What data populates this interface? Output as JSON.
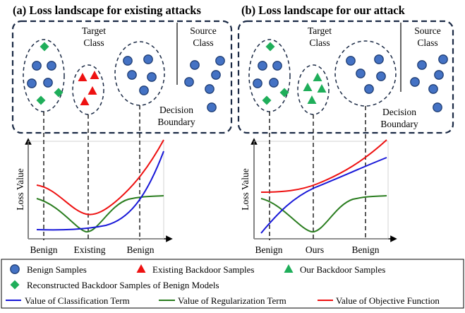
{
  "panels": [
    {
      "title": "(a) Loss landscape for existing attacks",
      "target_label": [
        "Target",
        "Class"
      ],
      "source_label": [
        "Source",
        "Class"
      ],
      "boundary_label": [
        "Decision",
        "Boundary"
      ],
      "y_axis_label": "Loss Value",
      "x_labels": [
        "Benign",
        "Existing",
        "Benign"
      ]
    },
    {
      "title": "(b) Loss landscape for our attack",
      "target_label": [
        "Target",
        "Class"
      ],
      "source_label": [
        "Source",
        "Class"
      ],
      "boundary_label": [
        "Decision",
        "Boundary"
      ],
      "y_axis_label": "Loss Value",
      "x_labels": [
        "Benign",
        "Ours",
        "Benign"
      ]
    }
  ],
  "legend": {
    "benign_samples": "Benign Samples",
    "existing_backdoor": "Existing Backdoor Samples",
    "our_backdoor": "Our Backdoor Samples",
    "reconstructed": "Reconstructed Backdoor Samples of Benign Models",
    "classification_term": "Value of Classification Term",
    "regularization_term": "Value of Regularization Term",
    "objective_function": "Value of Objective Function"
  },
  "colors": {
    "benign": "#4472c4",
    "existing": "#ee1111",
    "ours": "#1fae5a",
    "reconstructed": "#1fae5a",
    "classification": "#1818d8",
    "regularization": "#2a7d1f",
    "objective": "#ee1111"
  },
  "icons": [
    "blue-circle-icon",
    "red-triangle-icon",
    "green-triangle-icon",
    "green-diamond-icon"
  ]
}
